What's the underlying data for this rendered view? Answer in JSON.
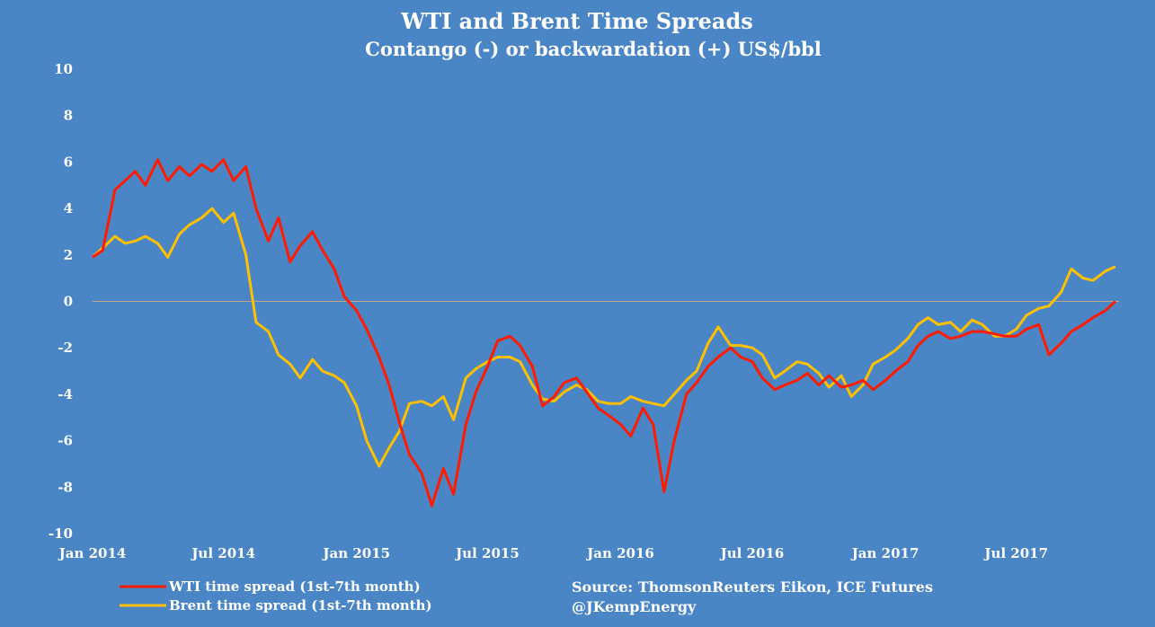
{
  "chart_data": {
    "type": "line",
    "title": "WTI  and Brent Time Spreads",
    "subtitle": "Contango (-) or backwardation (+) US$/bbl",
    "ylim": [
      -10,
      10
    ],
    "yticks": [
      "10",
      "8",
      "6",
      "4",
      "2",
      "0",
      "-2",
      "-4",
      "-6",
      "-8",
      "-10"
    ],
    "xlim": [
      "2014-01-01",
      "2017-11-20"
    ],
    "xticks": [
      {
        "label": "Jan 2014",
        "date": "2014-01-01"
      },
      {
        "label": "Jul 2014",
        "date": "2014-07-01"
      },
      {
        "label": "Jan 2015",
        "date": "2015-01-01"
      },
      {
        "label": "Jul 2015",
        "date": "2015-07-01"
      },
      {
        "label": "Jan 2016",
        "date": "2016-01-01"
      },
      {
        "label": "Jul 2016",
        "date": "2016-07-01"
      },
      {
        "label": "Jan 2017",
        "date": "2017-01-01"
      },
      {
        "label": "Jul 2017",
        "date": "2017-07-01"
      }
    ],
    "zero_line": true,
    "grid": false,
    "legend_position": "bottom-left",
    "series": [
      {
        "name": "WTI time spread (1st-7th month)",
        "color": "#ff1a00",
        "points": [
          [
            "2014-01-01",
            1.9
          ],
          [
            "2014-01-15",
            2.2
          ],
          [
            "2014-02-01",
            4.8
          ],
          [
            "2014-02-15",
            5.2
          ],
          [
            "2014-03-01",
            5.6
          ],
          [
            "2014-03-15",
            5.0
          ],
          [
            "2014-04-01",
            6.1
          ],
          [
            "2014-04-15",
            5.2
          ],
          [
            "2014-05-01",
            5.8
          ],
          [
            "2014-05-15",
            5.4
          ],
          [
            "2014-06-01",
            5.9
          ],
          [
            "2014-06-15",
            5.6
          ],
          [
            "2014-07-01",
            6.1
          ],
          [
            "2014-07-15",
            5.2
          ],
          [
            "2014-08-01",
            5.8
          ],
          [
            "2014-08-15",
            4.0
          ],
          [
            "2014-09-01",
            2.6
          ],
          [
            "2014-09-15",
            3.6
          ],
          [
            "2014-10-01",
            1.7
          ],
          [
            "2014-10-15",
            2.4
          ],
          [
            "2014-11-01",
            3.0
          ],
          [
            "2014-11-15",
            2.2
          ],
          [
            "2014-12-01",
            1.4
          ],
          [
            "2014-12-15",
            0.2
          ],
          [
            "2015-01-01",
            -0.4
          ],
          [
            "2015-01-15",
            -1.2
          ],
          [
            "2015-02-01",
            -2.4
          ],
          [
            "2015-02-15",
            -3.6
          ],
          [
            "2015-03-01",
            -5.2
          ],
          [
            "2015-03-15",
            -6.6
          ],
          [
            "2015-04-01",
            -7.4
          ],
          [
            "2015-04-15",
            -8.8
          ],
          [
            "2015-05-01",
            -7.2
          ],
          [
            "2015-05-15",
            -8.3
          ],
          [
            "2015-06-01",
            -5.3
          ],
          [
            "2015-06-15",
            -3.9
          ],
          [
            "2015-07-01",
            -2.8
          ],
          [
            "2015-07-15",
            -1.7
          ],
          [
            "2015-08-01",
            -1.5
          ],
          [
            "2015-08-15",
            -1.9
          ],
          [
            "2015-09-01",
            -2.8
          ],
          [
            "2015-09-15",
            -4.5
          ],
          [
            "2015-10-01",
            -4.1
          ],
          [
            "2015-10-15",
            -3.5
          ],
          [
            "2015-11-01",
            -3.3
          ],
          [
            "2015-11-15",
            -3.9
          ],
          [
            "2015-12-01",
            -4.6
          ],
          [
            "2015-12-15",
            -4.9
          ],
          [
            "2016-01-01",
            -5.3
          ],
          [
            "2016-01-15",
            -5.8
          ],
          [
            "2016-02-01",
            -4.6
          ],
          [
            "2016-02-15",
            -5.3
          ],
          [
            "2016-03-01",
            -8.2
          ],
          [
            "2016-03-15",
            -6.0
          ],
          [
            "2016-04-01",
            -4.0
          ],
          [
            "2016-04-15",
            -3.5
          ],
          [
            "2016-05-01",
            -2.8
          ],
          [
            "2016-05-15",
            -2.4
          ],
          [
            "2016-06-01",
            -2.0
          ],
          [
            "2016-06-15",
            -2.4
          ],
          [
            "2016-07-01",
            -2.6
          ],
          [
            "2016-07-15",
            -3.3
          ],
          [
            "2016-08-01",
            -3.8
          ],
          [
            "2016-08-15",
            -3.6
          ],
          [
            "2016-09-01",
            -3.4
          ],
          [
            "2016-09-15",
            -3.1
          ],
          [
            "2016-10-01",
            -3.6
          ],
          [
            "2016-10-15",
            -3.2
          ],
          [
            "2016-11-01",
            -3.7
          ],
          [
            "2016-11-15",
            -3.6
          ],
          [
            "2016-12-01",
            -3.4
          ],
          [
            "2016-12-15",
            -3.8
          ],
          [
            "2017-01-01",
            -3.4
          ],
          [
            "2017-01-15",
            -3.0
          ],
          [
            "2017-02-01",
            -2.6
          ],
          [
            "2017-02-15",
            -1.9
          ],
          [
            "2017-03-01",
            -1.5
          ],
          [
            "2017-03-15",
            -1.3
          ],
          [
            "2017-04-01",
            -1.6
          ],
          [
            "2017-04-15",
            -1.5
          ],
          [
            "2017-05-01",
            -1.3
          ],
          [
            "2017-05-15",
            -1.3
          ],
          [
            "2017-06-01",
            -1.4
          ],
          [
            "2017-06-15",
            -1.5
          ],
          [
            "2017-07-01",
            -1.5
          ],
          [
            "2017-07-15",
            -1.2
          ],
          [
            "2017-08-01",
            -1.0
          ],
          [
            "2017-08-15",
            -2.3
          ],
          [
            "2017-09-01",
            -1.8
          ],
          [
            "2017-09-15",
            -1.3
          ],
          [
            "2017-10-01",
            -1.0
          ],
          [
            "2017-10-15",
            -0.7
          ],
          [
            "2017-11-01",
            -0.4
          ],
          [
            "2017-11-15",
            0.0
          ]
        ]
      },
      {
        "name": "Brent time spread (1st-7th month)",
        "color": "#ffc000",
        "points": [
          [
            "2014-01-01",
            1.9
          ],
          [
            "2014-01-15",
            2.3
          ],
          [
            "2014-02-01",
            2.8
          ],
          [
            "2014-02-15",
            2.5
          ],
          [
            "2014-03-01",
            2.6
          ],
          [
            "2014-03-15",
            2.8
          ],
          [
            "2014-04-01",
            2.5
          ],
          [
            "2014-04-15",
            1.9
          ],
          [
            "2014-05-01",
            2.9
          ],
          [
            "2014-05-15",
            3.3
          ],
          [
            "2014-06-01",
            3.6
          ],
          [
            "2014-06-15",
            4.0
          ],
          [
            "2014-07-01",
            3.4
          ],
          [
            "2014-07-15",
            3.8
          ],
          [
            "2014-08-01",
            2.0
          ],
          [
            "2014-08-15",
            -0.9
          ],
          [
            "2014-09-01",
            -1.3
          ],
          [
            "2014-09-15",
            -2.3
          ],
          [
            "2014-10-01",
            -2.7
          ],
          [
            "2014-10-15",
            -3.3
          ],
          [
            "2014-11-01",
            -2.5
          ],
          [
            "2014-11-15",
            -3.0
          ],
          [
            "2014-12-01",
            -3.2
          ],
          [
            "2014-12-15",
            -3.5
          ],
          [
            "2015-01-01",
            -4.5
          ],
          [
            "2015-01-15",
            -6.0
          ],
          [
            "2015-02-01",
            -7.1
          ],
          [
            "2015-02-15",
            -6.3
          ],
          [
            "2015-03-01",
            -5.6
          ],
          [
            "2015-03-15",
            -4.4
          ],
          [
            "2015-04-01",
            -4.3
          ],
          [
            "2015-04-15",
            -4.5
          ],
          [
            "2015-05-01",
            -4.1
          ],
          [
            "2015-05-15",
            -5.1
          ],
          [
            "2015-06-01",
            -3.3
          ],
          [
            "2015-06-15",
            -2.9
          ],
          [
            "2015-07-01",
            -2.6
          ],
          [
            "2015-07-15",
            -2.4
          ],
          [
            "2015-08-01",
            -2.4
          ],
          [
            "2015-08-15",
            -2.6
          ],
          [
            "2015-09-01",
            -3.6
          ],
          [
            "2015-09-15",
            -4.2
          ],
          [
            "2015-10-01",
            -4.3
          ],
          [
            "2015-10-15",
            -3.9
          ],
          [
            "2015-11-01",
            -3.6
          ],
          [
            "2015-11-15",
            -3.8
          ],
          [
            "2015-12-01",
            -4.3
          ],
          [
            "2015-12-15",
            -4.4
          ],
          [
            "2016-01-01",
            -4.4
          ],
          [
            "2016-01-15",
            -4.1
          ],
          [
            "2016-02-01",
            -4.3
          ],
          [
            "2016-02-15",
            -4.4
          ],
          [
            "2016-03-01",
            -4.5
          ],
          [
            "2016-03-15",
            -4.0
          ],
          [
            "2016-04-01",
            -3.4
          ],
          [
            "2016-04-15",
            -3.0
          ],
          [
            "2016-05-01",
            -1.8
          ],
          [
            "2016-05-15",
            -1.1
          ],
          [
            "2016-06-01",
            -1.9
          ],
          [
            "2016-06-15",
            -1.9
          ],
          [
            "2016-07-01",
            -2.0
          ],
          [
            "2016-07-15",
            -2.3
          ],
          [
            "2016-08-01",
            -3.3
          ],
          [
            "2016-08-15",
            -3.0
          ],
          [
            "2016-09-01",
            -2.6
          ],
          [
            "2016-09-15",
            -2.7
          ],
          [
            "2016-10-01",
            -3.1
          ],
          [
            "2016-10-15",
            -3.7
          ],
          [
            "2016-11-01",
            -3.2
          ],
          [
            "2016-11-15",
            -4.1
          ],
          [
            "2016-12-01",
            -3.6
          ],
          [
            "2016-12-15",
            -2.7
          ],
          [
            "2017-01-01",
            -2.4
          ],
          [
            "2017-01-15",
            -2.1
          ],
          [
            "2017-02-01",
            -1.6
          ],
          [
            "2017-02-15",
            -1.0
          ],
          [
            "2017-03-01",
            -0.7
          ],
          [
            "2017-03-15",
            -1.0
          ],
          [
            "2017-04-01",
            -0.9
          ],
          [
            "2017-04-15",
            -1.3
          ],
          [
            "2017-05-01",
            -0.8
          ],
          [
            "2017-05-15",
            -1.0
          ],
          [
            "2017-06-01",
            -1.5
          ],
          [
            "2017-06-15",
            -1.5
          ],
          [
            "2017-07-01",
            -1.2
          ],
          [
            "2017-07-15",
            -0.6
          ],
          [
            "2017-08-01",
            -0.3
          ],
          [
            "2017-08-15",
            -0.2
          ],
          [
            "2017-09-01",
            0.4
          ],
          [
            "2017-09-15",
            1.4
          ],
          [
            "2017-10-01",
            1.0
          ],
          [
            "2017-10-15",
            0.9
          ],
          [
            "2017-11-01",
            1.3
          ],
          [
            "2017-11-15",
            1.5
          ]
        ]
      }
    ],
    "source": "Source: ThomsonReuters Eikon, ICE Futures",
    "credit": "@JKempEnergy"
  }
}
